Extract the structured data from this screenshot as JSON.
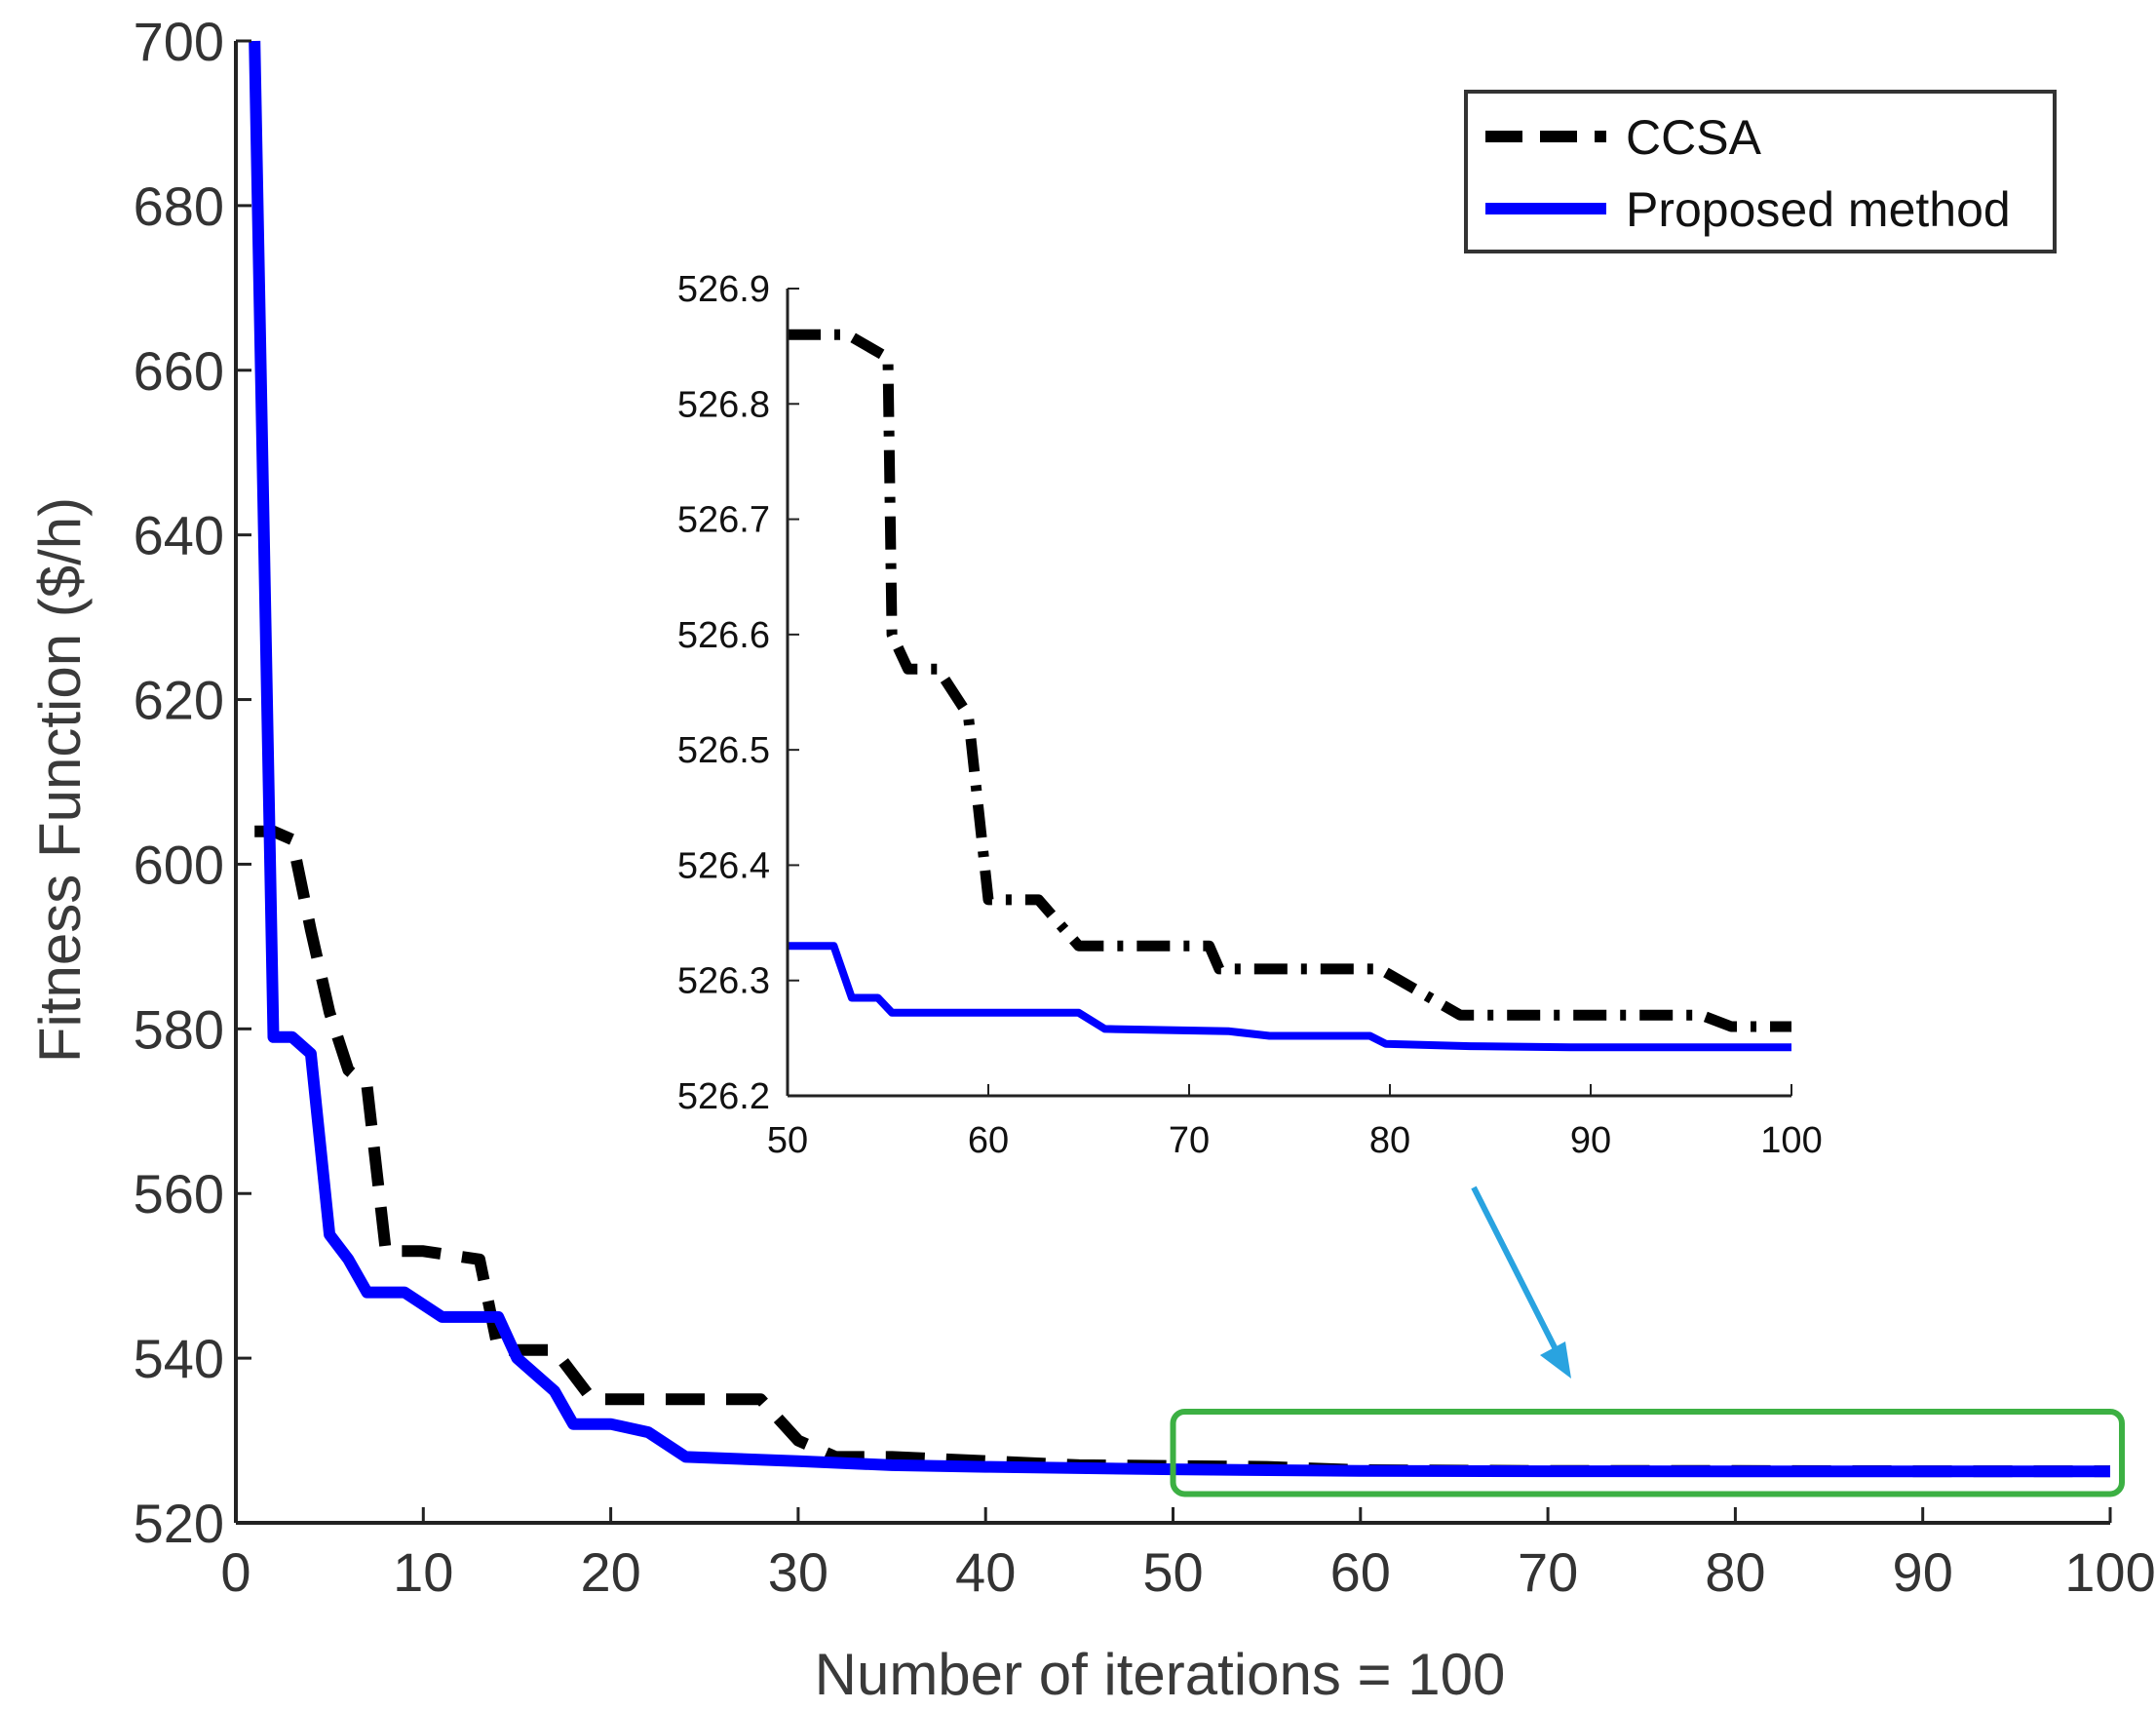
{
  "chart_data": [
    {
      "type": "line",
      "name": "main",
      "title": "",
      "xlabel": "Number of iterations = 100",
      "ylabel": "Fitness Function ($/h)",
      "xlim": [
        0,
        100
      ],
      "ylim": [
        520,
        700
      ],
      "xticks": [
        0,
        10,
        20,
        30,
        40,
        50,
        60,
        70,
        80,
        90,
        100
      ],
      "xtick_labels": [
        "0",
        "10",
        "20",
        "30",
        "40",
        "50",
        "60",
        "70",
        "80",
        "90",
        "100"
      ],
      "yticks": [
        520,
        540,
        560,
        580,
        600,
        620,
        640,
        660,
        680,
        700
      ],
      "ytick_labels": [
        "520",
        "540",
        "560",
        "580",
        "600",
        "620",
        "640",
        "660",
        "680",
        "700"
      ],
      "grid": false,
      "legend_position": "top-right",
      "series": [
        {
          "name": "CCSA",
          "color": "#000000",
          "style": "dashed",
          "x": [
            1,
            2,
            3,
            4,
            5,
            6,
            7,
            8,
            10,
            13,
            14,
            17,
            19,
            20,
            23,
            28,
            30,
            32,
            35,
            40,
            45,
            50,
            55,
            60,
            70,
            80,
            90,
            100
          ],
          "y": [
            604,
            604,
            603,
            592,
            582,
            575,
            573,
            553,
            553,
            552,
            541,
            541,
            535,
            535,
            535,
            535,
            530,
            528,
            528,
            527.5,
            527,
            526.9,
            526.8,
            526.4,
            526.3,
            526.3,
            526.27,
            526.26
          ]
        },
        {
          "name": "Proposed method",
          "color": "#0000ff",
          "style": "solid",
          "x": [
            1,
            2,
            3,
            4,
            5,
            6,
            7,
            9,
            11,
            14,
            15,
            17,
            18,
            20,
            22,
            24,
            30,
            35,
            40,
            50,
            60,
            70,
            80,
            90,
            100
          ],
          "y": [
            700,
            579,
            579,
            577,
            555,
            552,
            548,
            548,
            545,
            545,
            540,
            536,
            532,
            532,
            531,
            528,
            527.5,
            527,
            526.8,
            526.5,
            526.3,
            526.27,
            526.25,
            526.24,
            526.24
          ]
        }
      ]
    },
    {
      "type": "line",
      "name": "inset",
      "title": "",
      "xlabel": "",
      "ylabel": "",
      "xlim": [
        50,
        100
      ],
      "ylim": [
        526.2,
        526.9
      ],
      "xticks": [
        50,
        60,
        70,
        80,
        90,
        100
      ],
      "xtick_labels": [
        "50",
        "60",
        "70",
        "80",
        "90",
        "100"
      ],
      "yticks": [
        526.2,
        526.3,
        526.4,
        526.5,
        526.6,
        526.7,
        526.8,
        526.9
      ],
      "ytick_labels": [
        "526.2",
        "526.3",
        "526.4",
        "526.5",
        "526.6",
        "526.7",
        "526.8",
        "526.9"
      ],
      "grid": false,
      "series": [
        {
          "name": "CCSA",
          "color": "#000000",
          "style": "dashdot",
          "x": [
            50,
            53,
            55,
            55.2,
            56,
            57.5,
            59,
            60,
            62.5,
            64.5,
            71,
            71.5,
            79.5,
            83.5,
            95.5,
            97,
            100
          ],
          "y": [
            526.86,
            526.86,
            526.84,
            526.6,
            526.57,
            526.57,
            526.53,
            526.37,
            526.37,
            526.33,
            526.33,
            526.31,
            526.31,
            526.27,
            526.27,
            526.26,
            526.26
          ]
        },
        {
          "name": "Proposed method",
          "color": "#0000ff",
          "style": "solid",
          "x": [
            50,
            52.3,
            53.2,
            54.5,
            55.2,
            64.5,
            65.8,
            72,
            74,
            79,
            79.8,
            84,
            89,
            100
          ],
          "y": [
            526.33,
            526.33,
            526.285,
            526.285,
            526.272,
            526.272,
            526.258,
            526.256,
            526.252,
            526.252,
            526.245,
            526.243,
            526.242,
            526.242
          ]
        }
      ]
    }
  ],
  "annotation": {
    "highlight_box": {
      "x_range": [
        50,
        100
      ],
      "y_range": [
        523.5,
        533.5
      ],
      "color": "#3cb043"
    },
    "arrow_color": "#29a3e0"
  }
}
